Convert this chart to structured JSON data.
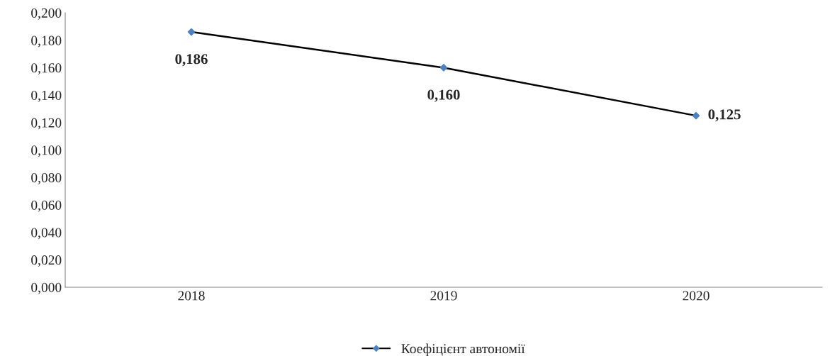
{
  "chart_data": {
    "type": "line",
    "categories": [
      "2018",
      "2019",
      "2020"
    ],
    "series": [
      {
        "name": "Коефіцієнт автономії",
        "color": "#000000",
        "colors": [
          "#4f81bd",
          "#4f81bd",
          "#4f81bd"
        ],
        "values": [
          0.186,
          0.16,
          0.125
        ],
        "value_labels": [
          "0,186",
          "0,160",
          "0,125"
        ]
      }
    ],
    "ylim": [
      0,
      0.2
    ],
    "yticks": [
      {
        "value": 0,
        "label": "0,000"
      },
      {
        "value": 0.02,
        "label": "0,020"
      },
      {
        "value": 0.04,
        "label": "0,040"
      },
      {
        "value": 0.06,
        "label": "0,060"
      },
      {
        "value": 0.08,
        "label": "0,080"
      },
      {
        "value": 0.1,
        "label": "0,100"
      },
      {
        "value": 0.12,
        "label": "0,120"
      },
      {
        "value": 0.14,
        "label": "0,140"
      },
      {
        "value": 0.16,
        "label": "0,160"
      },
      {
        "value": 0.18,
        "label": "0,180"
      },
      {
        "value": 0.2,
        "label": "0,200"
      }
    ],
    "grid": false,
    "legend": "bottom",
    "marker": "diamond",
    "line_style": "solid"
  }
}
